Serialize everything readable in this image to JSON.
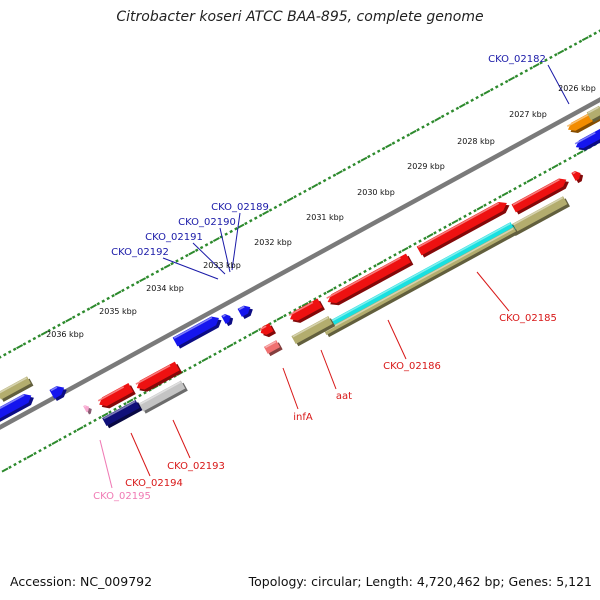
{
  "title": "Citrobacter koseri ATCC BAA-895, complete genome",
  "footer": {
    "accession": "Accession: NC_009792",
    "summary": "Topology: circular; Length: 4,720,462 bp; Genes: 5,121"
  },
  "ruler": [
    "2026 kbp",
    "2027 kbp",
    "2028 kbp",
    "2029 kbp",
    "2030 kbp",
    "2031 kbp",
    "2032 kbp",
    "2033 kbp",
    "2034 kbp",
    "2035 kbp",
    "2036 kbp"
  ],
  "gene_labels": [
    {
      "text": "CKO_02182",
      "color": "#1a1aa8"
    },
    {
      "text": "CKO_02189",
      "color": "#1a1aa8"
    },
    {
      "text": "CKO_02190",
      "color": "#1a1aa8"
    },
    {
      "text": "CKO_02191",
      "color": "#1a1aa8"
    },
    {
      "text": "CKO_02192",
      "color": "#1a1aa8"
    },
    {
      "text": "CKO_02185",
      "color": "#d81818"
    },
    {
      "text": "CKO_02186",
      "color": "#d81818"
    },
    {
      "text": "aat",
      "color": "#d81818"
    },
    {
      "text": "infA",
      "color": "#d81818"
    },
    {
      "text": "CKO_02193",
      "color": "#d81818"
    },
    {
      "text": "CKO_02194",
      "color": "#d81818"
    },
    {
      "text": "CKO_02195",
      "color": "#f07ab4"
    }
  ],
  "colors": {
    "backbone": "#7a7a7a",
    "blue": "#1515ee",
    "red": "#ee1111",
    "olive": "#b3ad6e",
    "cyan": "#19e0e0",
    "navy": "#10107a",
    "silver": "#c4c4c4",
    "orange": "#f28c00",
    "ticks": "#2d8a2d"
  }
}
